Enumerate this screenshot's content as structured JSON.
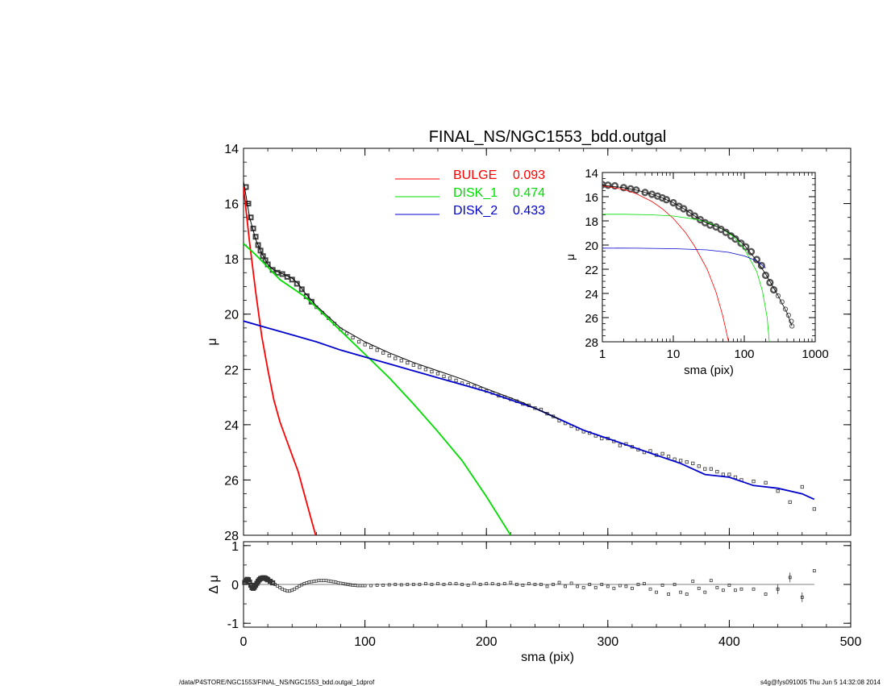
{
  "footer": {
    "left": "/data/P4STORE/NGC1553/FINAL_NS/NGC1553_bdd.outgal_1dprof",
    "right": "s4g@fys091005  Thu Jun  5 14:32:08 2014"
  },
  "colors": {
    "bulge": "#ff0000",
    "disk1": "#00dd00",
    "disk2": "#0000cc",
    "data": "#000000",
    "model": "#000000"
  },
  "chart_data": [
    {
      "type": "line",
      "title": "FINAL_NS/NGC1553_bdd.outgal",
      "xlabel": "",
      "ylabel": "μ",
      "xlim": [
        0,
        500
      ],
      "ylim": [
        28,
        14
      ],
      "yticks": [
        14,
        16,
        18,
        20,
        22,
        24,
        26,
        28
      ],
      "legend": [
        {
          "name": "BULGE",
          "value": "0.093",
          "color": "#ff0000"
        },
        {
          "name": "DISK_1",
          "value": "0.474",
          "color": "#00dd00"
        },
        {
          "name": "DISK_2",
          "value": "0.433",
          "color": "#0000cc"
        }
      ],
      "series": [
        {
          "name": "BULGE",
          "color": "#ff0000",
          "x": [
            0,
            5,
            10,
            15,
            20,
            25,
            30,
            35,
            40,
            45,
            50,
            55,
            60
          ],
          "y": [
            15.4,
            17.4,
            19.2,
            20.8,
            22.0,
            23.1,
            23.9,
            24.5,
            25.1,
            25.7,
            26.5,
            27.3,
            28.1
          ]
        },
        {
          "name": "DISK_1",
          "color": "#00dd00",
          "x": [
            0,
            10,
            20,
            30,
            40,
            50,
            60,
            80,
            100,
            120,
            140,
            160,
            180,
            200,
            220
          ],
          "y": [
            17.45,
            17.85,
            18.3,
            18.75,
            19.05,
            19.35,
            19.75,
            20.6,
            21.45,
            22.3,
            23.25,
            24.25,
            25.3,
            26.6,
            28.0
          ]
        },
        {
          "name": "DISK_2",
          "color": "#0000cc",
          "x": [
            0,
            20,
            40,
            60,
            80,
            100,
            120,
            140,
            160,
            180,
            200,
            220,
            240,
            260,
            280,
            300,
            320,
            340,
            360,
            380,
            400,
            420,
            440,
            460,
            470
          ],
          "y": [
            20.25,
            20.5,
            20.75,
            21.0,
            21.3,
            21.55,
            21.8,
            22.05,
            22.3,
            22.55,
            22.8,
            23.1,
            23.4,
            23.8,
            24.2,
            24.5,
            24.8,
            25.1,
            25.4,
            25.8,
            25.9,
            26.2,
            26.3,
            26.5,
            26.7
          ]
        },
        {
          "name": "Model",
          "color": "#000000",
          "x": [
            0,
            2,
            5,
            10,
            15,
            20,
            25,
            30,
            35,
            40,
            45,
            50,
            60,
            70,
            80,
            100,
            120,
            140,
            160,
            180,
            200,
            230,
            260
          ],
          "y": [
            15.2,
            15.7,
            16.5,
            17.3,
            17.8,
            18.2,
            18.4,
            18.5,
            18.6,
            18.7,
            18.9,
            19.2,
            19.7,
            20.1,
            20.5,
            21.0,
            21.4,
            21.75,
            22.05,
            22.35,
            22.7,
            23.2,
            23.8
          ]
        }
      ],
      "points": {
        "x": [
          2,
          4,
          6,
          8,
          10,
          12,
          14,
          16,
          18,
          20,
          24,
          28,
          32,
          36,
          40,
          44,
          48,
          52,
          56,
          60,
          65,
          70,
          75,
          80,
          85,
          90,
          95,
          100,
          105,
          110,
          115,
          120,
          125,
          130,
          135,
          140,
          145,
          150,
          155,
          160,
          165,
          170,
          175,
          180,
          185,
          190,
          195,
          200,
          205,
          210,
          215,
          220,
          225,
          230,
          235,
          240,
          245,
          250,
          255,
          260,
          265,
          270,
          275,
          280,
          285,
          290,
          295,
          300,
          305,
          310,
          315,
          320,
          325,
          330,
          335,
          340,
          345,
          350,
          355,
          360,
          365,
          370,
          375,
          380,
          385,
          390,
          395,
          400,
          405,
          410,
          420,
          430,
          440,
          450,
          460,
          470
        ],
        "y": [
          15.4,
          16.0,
          16.5,
          16.9,
          17.2,
          17.5,
          17.7,
          17.9,
          18.05,
          18.2,
          18.4,
          18.5,
          18.55,
          18.65,
          18.75,
          18.9,
          19.1,
          19.35,
          19.55,
          19.75,
          19.95,
          20.15,
          20.35,
          20.55,
          20.7,
          20.85,
          21.0,
          21.1,
          21.2,
          21.3,
          21.4,
          21.5,
          21.6,
          21.68,
          21.76,
          21.84,
          21.92,
          22.0,
          22.08,
          22.15,
          22.25,
          22.32,
          22.4,
          22.5,
          22.55,
          22.62,
          22.7,
          22.78,
          22.85,
          22.95,
          23.0,
          23.08,
          23.15,
          23.25,
          23.3,
          23.4,
          23.45,
          23.6,
          23.7,
          23.85,
          23.95,
          24.05,
          24.15,
          24.25,
          24.3,
          24.4,
          24.5,
          24.5,
          24.6,
          24.75,
          24.7,
          24.8,
          24.9,
          25.0,
          24.95,
          25.1,
          25.05,
          25.15,
          25.25,
          25.3,
          25.35,
          25.4,
          25.5,
          25.6,
          25.6,
          25.7,
          25.8,
          25.8,
          25.9,
          26.0,
          26.05,
          26.1,
          26.4,
          26.8,
          26.25,
          27.05
        ]
      }
    },
    {
      "type": "scatter",
      "title": "",
      "xlabel": "sma (pix)",
      "ylabel": "Δ μ",
      "xlim": [
        0,
        500
      ],
      "ylim": [
        -1.1,
        1.1
      ],
      "xticks": [
        0,
        100,
        200,
        300,
        400,
        500
      ],
      "yticks": [
        -1,
        0,
        1
      ],
      "points": {
        "x": [
          1,
          2,
          3,
          4,
          5,
          6,
          7,
          8,
          9,
          10,
          11,
          12,
          13,
          14,
          15,
          16,
          17,
          18,
          19,
          20,
          22,
          24,
          26,
          28,
          30,
          32,
          34,
          36,
          38,
          40,
          42,
          44,
          46,
          48,
          50,
          52,
          54,
          56,
          58,
          60,
          62,
          64,
          66,
          68,
          70,
          72,
          74,
          76,
          78,
          80,
          82,
          84,
          86,
          88,
          90,
          92,
          94,
          96,
          98,
          100,
          105,
          110,
          115,
          120,
          125,
          130,
          135,
          140,
          145,
          150,
          155,
          160,
          165,
          170,
          175,
          180,
          185,
          190,
          195,
          200,
          205,
          210,
          215,
          220,
          225,
          230,
          235,
          240,
          245,
          250,
          255,
          260,
          265,
          270,
          275,
          280,
          285,
          290,
          295,
          300,
          305,
          310,
          315,
          320,
          325,
          330,
          335,
          340,
          345,
          350,
          355,
          360,
          365,
          370,
          375,
          380,
          385,
          390,
          395,
          400,
          405,
          410,
          420,
          430,
          440,
          450,
          460,
          470
        ],
        "y": [
          0.05,
          0.1,
          0.13,
          0.12,
          0.06,
          -0.02,
          -0.08,
          -0.1,
          -0.07,
          -0.02,
          0.03,
          0.08,
          0.12,
          0.15,
          0.16,
          0.17,
          0.17,
          0.16,
          0.14,
          0.12,
          0.08,
          0.04,
          0.0,
          -0.04,
          -0.08,
          -0.12,
          -0.15,
          -0.17,
          -0.17,
          -0.15,
          -0.12,
          -0.08,
          -0.04,
          -0.01,
          0.02,
          0.04,
          0.06,
          0.07,
          0.08,
          0.09,
          0.1,
          0.1,
          0.1,
          0.1,
          0.09,
          0.08,
          0.07,
          0.06,
          0.04,
          0.03,
          0.02,
          0.01,
          0.0,
          -0.01,
          -0.02,
          -0.02,
          -0.03,
          -0.03,
          -0.03,
          -0.03,
          -0.03,
          -0.02,
          -0.02,
          -0.01,
          0.0,
          -0.01,
          0.0,
          0.0,
          0.0,
          0.02,
          0.0,
          0.02,
          0.0,
          0.02,
          0.02,
          0.0,
          -0.02,
          0.03,
          0.0,
          0.02,
          0.02,
          0.0,
          0.02,
          0.05,
          0.0,
          -0.02,
          0.02,
          0.0,
          0.0,
          -0.05,
          0.0,
          0.05,
          -0.05,
          0.03,
          -0.05,
          -0.08,
          0.0,
          -0.08,
          0.0,
          -0.05,
          -0.1,
          -0.03,
          -0.05,
          -0.1,
          0.0,
          0.02,
          -0.12,
          -0.2,
          -0.02,
          -0.25,
          0.0,
          -0.2,
          -0.25,
          0.08,
          -0.1,
          -0.2,
          0.1,
          -0.08,
          -0.15,
          -0.02,
          -0.15,
          -0.12,
          -0.12,
          -0.25,
          -0.12,
          0.18,
          -0.33,
          0.35
        ],
        "errorbars": [
          false,
          false,
          false,
          false,
          false,
          false,
          false,
          false,
          false,
          false,
          false,
          false,
          false,
          false,
          false,
          false,
          false,
          false,
          false,
          false,
          false,
          false,
          false,
          false,
          false,
          false,
          false,
          false,
          false,
          false,
          false,
          false,
          false,
          false,
          false,
          false,
          false,
          false,
          false,
          false,
          false,
          false,
          false,
          false,
          false,
          false,
          false,
          false,
          false,
          false,
          false,
          false,
          false,
          false,
          false,
          false,
          false,
          false,
          false,
          false,
          false,
          false,
          false,
          false,
          false,
          false,
          false,
          false,
          false,
          false,
          false,
          false,
          false,
          false,
          false,
          false,
          false,
          false,
          false,
          false,
          false,
          false,
          false,
          false,
          false,
          false,
          false,
          false,
          false,
          false,
          false,
          false,
          false,
          false,
          false,
          false,
          false,
          false,
          false,
          false,
          false,
          false,
          false,
          false,
          false,
          false,
          false,
          false,
          false,
          false,
          false,
          false,
          false,
          false,
          false,
          false,
          false,
          false,
          false,
          false,
          false,
          false,
          false,
          false,
          true,
          true,
          true
        ]
      }
    },
    {
      "type": "line",
      "title": "",
      "xlabel": "sma (pix)",
      "ylabel": "μ",
      "xscale": "log",
      "xlim": [
        1,
        1000
      ],
      "ylim": [
        28,
        14
      ],
      "xticks": [
        1,
        10,
        100,
        1000
      ],
      "yticks": [
        14,
        16,
        18,
        20,
        22,
        24,
        26,
        28
      ],
      "series": [
        {
          "name": "BULGE",
          "color": "#ff0000",
          "x": [
            1,
            2,
            3,
            5,
            7,
            10,
            15,
            20,
            30,
            40,
            50,
            60
          ],
          "y": [
            15.1,
            15.4,
            15.75,
            16.4,
            17.0,
            17.8,
            19.0,
            20.1,
            22.0,
            23.9,
            25.9,
            28.0
          ]
        },
        {
          "name": "DISK_1",
          "color": "#00dd00",
          "x": [
            1,
            2,
            5,
            10,
            20,
            30,
            50,
            70,
            100,
            150,
            180,
            210,
            225
          ],
          "y": [
            17.45,
            17.45,
            17.5,
            17.6,
            17.85,
            18.1,
            18.7,
            19.3,
            20.3,
            22.2,
            23.8,
            26.0,
            28.0
          ]
        },
        {
          "name": "DISK_2",
          "color": "#0000cc",
          "x": [
            1,
            3,
            10,
            30,
            60,
            100,
            150,
            200
          ],
          "y": [
            20.25,
            20.26,
            20.3,
            20.4,
            20.6,
            20.9,
            21.3,
            21.9
          ]
        },
        {
          "name": "Model",
          "color": "#000000",
          "x": [
            1,
            2,
            3,
            5,
            7,
            10,
            15,
            20,
            30,
            40,
            50,
            70,
            100,
            150,
            200,
            300,
            400,
            470
          ],
          "y": [
            15.05,
            15.25,
            15.45,
            15.8,
            16.1,
            16.5,
            17.1,
            17.6,
            18.2,
            18.45,
            18.7,
            19.2,
            20.0,
            21.3,
            22.4,
            24.2,
            25.6,
            26.7
          ]
        }
      ],
      "points": {
        "x": [
          1,
          1.2,
          1.5,
          2,
          2.5,
          3,
          4,
          5,
          6,
          7,
          8,
          10,
          12,
          14,
          17,
          20,
          24,
          28,
          33,
          40,
          47,
          55,
          65,
          75,
          90,
          105,
          125,
          150,
          175,
          200,
          230,
          260,
          300,
          340,
          380,
          420,
          460,
          470
        ],
        "y": [
          15.0,
          15.05,
          15.1,
          15.25,
          15.35,
          15.45,
          15.65,
          15.8,
          15.95,
          16.1,
          16.25,
          16.5,
          16.8,
          17.0,
          17.35,
          17.6,
          17.9,
          18.15,
          18.35,
          18.5,
          18.7,
          18.95,
          19.25,
          19.5,
          19.85,
          20.15,
          20.55,
          21.2,
          21.7,
          22.5,
          23.1,
          23.7,
          24.2,
          24.7,
          25.3,
          25.8,
          26.3,
          26.7
        ]
      }
    }
  ]
}
